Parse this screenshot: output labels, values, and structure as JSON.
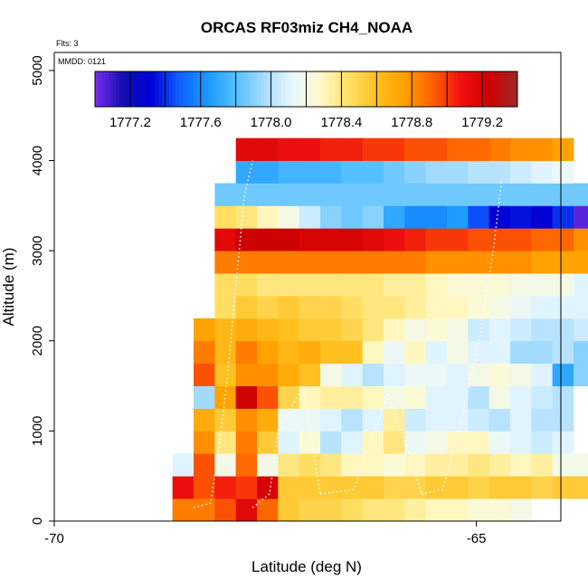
{
  "chart_data": {
    "type": "heatmap",
    "title": "ORCAS RF03miz CH4_NOAA",
    "flights_note": "Flts: 3",
    "date_note": "MMDD: 0121",
    "xlabel": "Latitude (deg N)",
    "ylabel": "Altitude (m)",
    "xlim": [
      -70,
      -64
    ],
    "ylim": [
      0,
      5200
    ],
    "x_ticks": [
      {
        "value": -70,
        "label": "-70"
      },
      {
        "value": -65,
        "label": "-65"
      }
    ],
    "y_ticks": [
      {
        "value": 0,
        "label": "0"
      },
      {
        "value": 1000,
        "label": "1000"
      },
      {
        "value": 2000,
        "label": "2000"
      },
      {
        "value": 3000,
        "label": "3000"
      },
      {
        "value": 4000,
        "label": "4000"
      },
      {
        "value": 5000,
        "label": "5000"
      }
    ],
    "colorbar": {
      "min": 1777.0,
      "max": 1779.4,
      "ticks": [
        {
          "value": 1777.2,
          "label": "1777.2"
        },
        {
          "value": 1777.6,
          "label": "1777.6"
        },
        {
          "value": 1778.0,
          "label": "1778.0"
        },
        {
          "value": 1778.4,
          "label": "1778.4"
        },
        {
          "value": 1778.8,
          "label": "1778.8"
        },
        {
          "value": 1779.2,
          "label": "1779.2"
        }
      ],
      "colors": [
        "#7b2cf0",
        "#1010b0",
        "#0000d8",
        "#1060ff",
        "#1a9aff",
        "#55c0ff",
        "#a8dcff",
        "#e8f8ff",
        "#fffacc",
        "#ffe066",
        "#ffc020",
        "#ffa000",
        "#ff6000",
        "#f01010",
        "#d00000",
        "#9c2a2a"
      ]
    },
    "grid": {
      "lat_start": -68.6,
      "lat_step": 0.25,
      "alt_start": 0,
      "alt_step": 250
    },
    "rows": [
      {
        "alt_index": 0,
        "start_col": 0,
        "values": [
          1778.85,
          1778.85,
          1778.95,
          1779.15,
          1778.9,
          1778.55,
          1778.5,
          1778.5,
          1778.45,
          1778.4,
          1778.4,
          1778.35,
          1778.3,
          1778.3,
          1778.25,
          1778.25,
          1778.2
        ]
      },
      {
        "alt_index": 1,
        "start_col": 0,
        "values": [
          1779.1,
          1778.95,
          1779.05,
          1779.0,
          1779.2,
          1778.55,
          1778.55,
          1778.55,
          1778.55,
          1778.55,
          1778.5,
          1778.5,
          1778.55,
          1778.55,
          1778.5,
          1778.55,
          1778.55,
          1778.5,
          1778.55,
          1778.55,
          1778.85
        ]
      },
      {
        "alt_index": 2,
        "start_col": 0,
        "values": [
          1778.1,
          1778.95,
          1778.2,
          1778.9,
          1778.2,
          1778.4,
          1778.45,
          1778.4,
          1778.3,
          1778.3,
          1778.25,
          1778.3,
          1778.35,
          1778.35,
          1778.4,
          1778.35,
          1778.3,
          1778.35,
          1778.2,
          1778.2,
          1778.3
        ]
      },
      {
        "alt_index": 3,
        "start_col": 1,
        "values": [
          1778.8,
          1778.4,
          1778.85,
          1778.55,
          1778.1,
          1778.25,
          1778.0,
          1778.1,
          1778.3,
          1778.4,
          1778.15,
          1778.2,
          1778.3,
          1778.3,
          1778.15,
          1778.1,
          1778.05,
          1778.1
        ]
      },
      {
        "alt_index": 4,
        "start_col": 1,
        "values": [
          1778.7,
          1778.55,
          1778.8,
          1778.7,
          1778.15,
          1778.15,
          1778.1,
          1778.0,
          1778.1,
          1778.35,
          1778.05,
          1778.1,
          1778.1,
          1778.05,
          1778.0,
          1778.1,
          1778.0,
          1778.0
        ]
      },
      {
        "alt_index": 5,
        "start_col": 1,
        "values": [
          1777.95,
          1778.75,
          1779.25,
          1778.95,
          1778.5,
          1778.3,
          1778.35,
          1778.35,
          1778.3,
          1778.2,
          1778.25,
          1778.1,
          1778.1,
          1778.0,
          1778.2,
          1778.1,
          1778.05,
          1778.0
        ]
      },
      {
        "alt_index": 6,
        "start_col": 1,
        "values": [
          1778.95,
          1778.6,
          1778.8,
          1778.8,
          1778.7,
          1778.6,
          1778.2,
          1778.1,
          1778.0,
          1778.1,
          1778.15,
          1778.15,
          1778.1,
          1778.2,
          1778.25,
          1778.2,
          1778.1,
          1777.7,
          1777.9
        ]
      },
      {
        "alt_index": 7,
        "start_col": 1,
        "values": [
          1778.85,
          1778.65,
          1778.85,
          1778.75,
          1778.65,
          1778.7,
          1778.6,
          1778.6,
          1778.3,
          1778.15,
          1778.3,
          1778.1,
          1778.2,
          1778.1,
          1778.1,
          1777.95,
          1777.95,
          1778.0,
          1777.9
        ]
      },
      {
        "alt_index": 8,
        "start_col": 1,
        "values": [
          1778.75,
          1778.65,
          1778.7,
          1778.65,
          1778.6,
          1778.55,
          1778.55,
          1778.5,
          1778.4,
          1778.3,
          1778.2,
          1778.25,
          1778.2,
          1778.05,
          1778.1,
          1778.05,
          1778.0,
          1778.0,
          1778.05
        ]
      },
      {
        "alt_index": 9,
        "start_col": 2,
        "values": [
          1778.45,
          1778.55,
          1778.5,
          1778.55,
          1778.5,
          1778.5,
          1778.45,
          1778.4,
          1778.4,
          1778.35,
          1778.3,
          1778.3,
          1778.25,
          1778.2,
          1778.15,
          1778.1,
          1778.1,
          1778.1
        ]
      },
      {
        "alt_index": 10,
        "start_col": 2,
        "values": [
          1778.45,
          1778.45,
          1778.4,
          1778.4,
          1778.4,
          1778.4,
          1778.4,
          1778.4,
          1778.35,
          1778.35,
          1778.3,
          1778.25,
          1778.25,
          1778.25,
          1778.2,
          1778.2,
          1778.2,
          1778.1
        ]
      },
      {
        "alt_index": 11,
        "start_col": 2,
        "values": [
          1778.85,
          1778.85,
          1778.85,
          1778.85,
          1778.85,
          1778.85,
          1778.85,
          1778.85,
          1778.85,
          1778.85,
          1778.8,
          1778.8,
          1778.8,
          1778.8,
          1778.8,
          1778.75,
          1778.75,
          1778.75
        ]
      },
      {
        "alt_index": 12,
        "start_col": 2,
        "values": [
          1779.15,
          1779.25,
          1779.25,
          1779.25,
          1779.2,
          1779.2,
          1779.2,
          1779.15,
          1779.1,
          1779.05,
          1779.0,
          1779.0,
          1778.95,
          1778.95,
          1778.95,
          1778.9,
          1778.9,
          1778.8,
          1778.8
        ]
      },
      {
        "alt_index": 13,
        "start_col": 2,
        "values": [
          1778.45,
          1778.4,
          1778.3,
          1778.2,
          1778.05,
          1777.9,
          1777.85,
          1777.9,
          1777.7,
          1777.6,
          1777.6,
          1777.65,
          1777.45,
          1777.3,
          1777.35,
          1777.3,
          1777.4,
          1777.05
        ]
      },
      {
        "alt_index": 14,
        "start_col": 2,
        "values": [
          1777.85,
          1777.85,
          1777.85,
          1777.85,
          1777.85,
          1777.85,
          1777.85,
          1777.85,
          1777.85,
          1777.85,
          1777.85,
          1777.85,
          1777.85,
          1777.85,
          1777.85,
          1777.85,
          1777.85,
          1777.85
        ]
      },
      {
        "alt_index": 15,
        "start_col": 3,
        "values": [
          1777.7,
          1777.7,
          1777.75,
          1777.75,
          1777.75,
          1777.8,
          1777.8,
          1777.85,
          1777.9,
          1777.95,
          1777.95,
          1778.0,
          1778.0,
          1778.05,
          1778.1,
          1778.15
        ]
      },
      {
        "alt_index": 16,
        "start_col": 3,
        "values": [
          1779.15,
          1779.15,
          1779.1,
          1779.1,
          1779.05,
          1779.05,
          1779.0,
          1779.0,
          1778.95,
          1778.95,
          1778.9,
          1778.9,
          1778.85,
          1778.8,
          1778.8,
          1778.75
        ]
      }
    ]
  }
}
